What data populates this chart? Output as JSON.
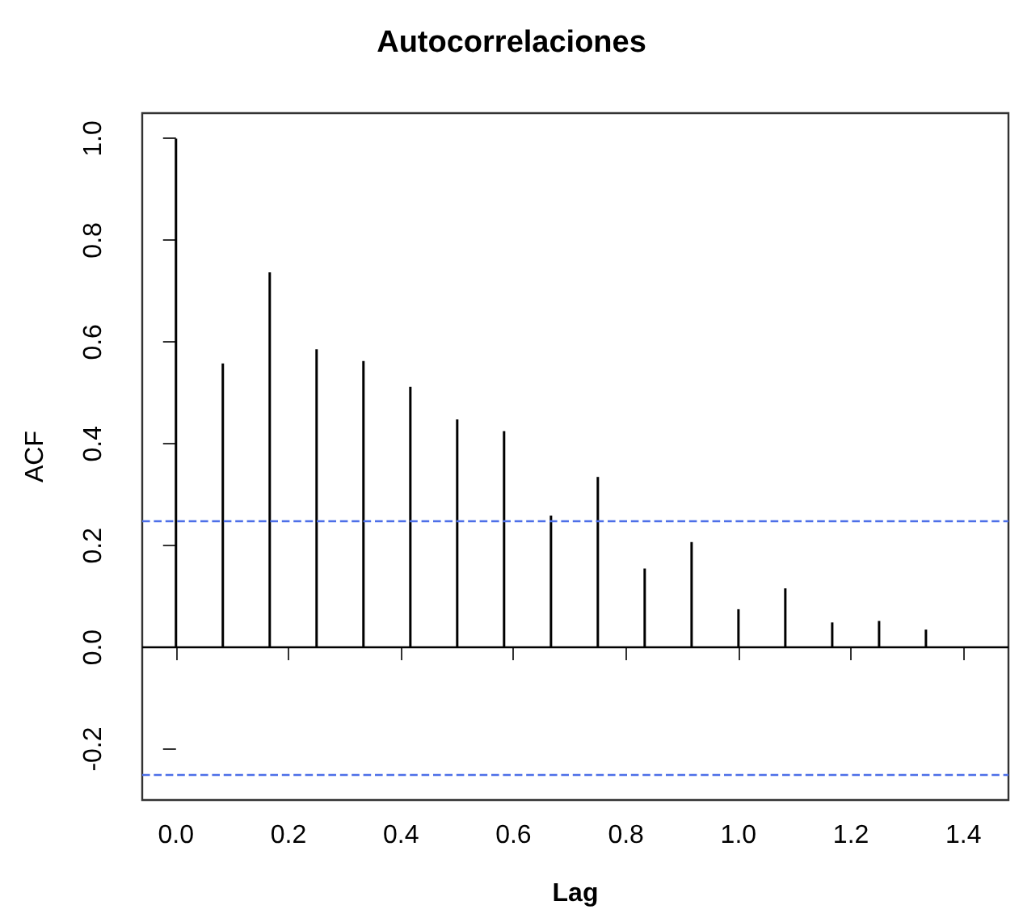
{
  "chart_data": {
    "type": "bar",
    "title": "Autocorrelaciones",
    "xlabel": "Lag",
    "ylabel": "ACF",
    "x": [
      0,
      0.0833,
      0.1667,
      0.25,
      0.3333,
      0.4167,
      0.5,
      0.5833,
      0.6667,
      0.75,
      0.8333,
      0.9167,
      1,
      1.0833,
      1.1667,
      1.25,
      1.3333
    ],
    "series": [
      {
        "color": "#000000",
        "values": [
          1,
          0.558,
          0.737,
          0.586,
          0.563,
          0.512,
          0.448,
          0.425,
          0.259,
          0.335,
          0.155,
          0.207,
          0.075,
          0.116,
          0.049,
          0.052,
          0.035
        ]
      }
    ],
    "xlim": [
      -0.06,
      1.48
    ],
    "xticks": [
      {
        "value": 0,
        "label": "0.0"
      },
      0.2,
      0.4,
      0.6,
      0.8,
      {
        "value": 1,
        "label": "1.0"
      },
      1.2,
      1.4
    ],
    "ylim": [
      -0.3,
      1.05
    ],
    "yticks": [
      -0.2,
      {
        "value": 0,
        "label": "0.0"
      },
      0.2,
      0.4,
      0.6,
      0.8,
      {
        "value": 1,
        "label": "1.0"
      }
    ],
    "ref_lines": [
      {
        "axis": "y",
        "value": 0,
        "color": "#000000",
        "line_style": "solid"
      },
      {
        "axis": "y",
        "value": 0.25,
        "color": "#4d6fe8",
        "line_style": "dashed"
      },
      {
        "axis": "y",
        "value": -0.25,
        "color": "#4d6fe8",
        "line_style": "dashed"
      }
    ],
    "grid": false
  }
}
